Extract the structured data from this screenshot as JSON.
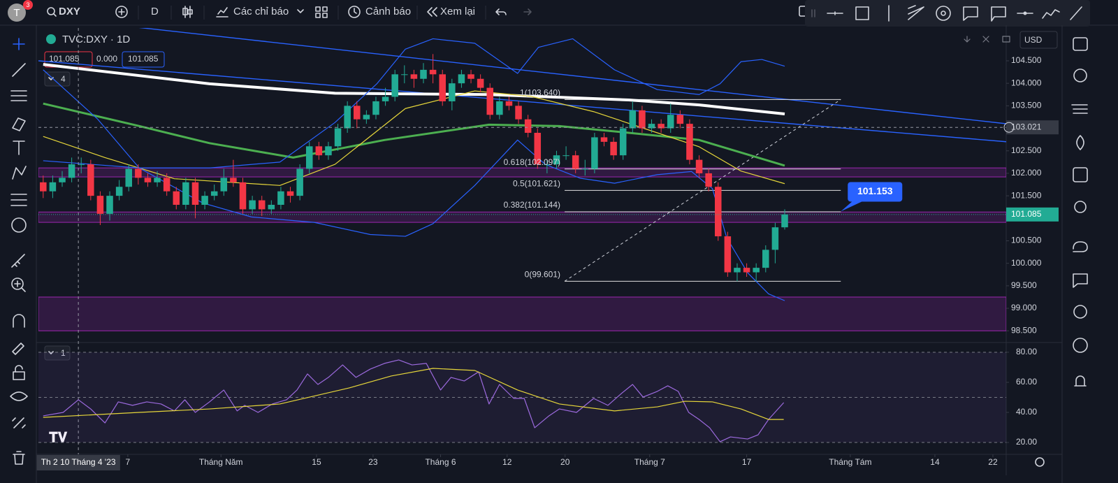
{
  "toolbar": {
    "avatar": "T",
    "badge": "3",
    "symbol": "DXY",
    "interval": "D",
    "indicators": "Các chỉ báo",
    "alert": "Cảnh báo",
    "replay": "Xem lại"
  },
  "legend": {
    "title": "TVC:DXY · 1D",
    "open": "101.085",
    "change": "0.000",
    "last": "101.085",
    "main_count": "4",
    "rsi_count": "1"
  },
  "currency": "USD",
  "chart_data": [
    {
      "type": "candlestick",
      "up_color": "#22ab94",
      "down_color": "#f23645",
      "open": [
        101.8,
        101.6,
        101.8,
        101.9,
        102.2,
        102.2,
        101.5,
        101.1,
        101.5,
        101.7,
        102.1,
        101.9,
        101.8,
        101.9,
        101.6,
        101.3,
        101.8,
        101.3,
        101.5,
        101.6,
        101.9,
        101.8,
        101.2,
        101.4,
        101.2,
        101.3,
        101.6,
        101.5,
        102.1,
        102.6,
        102.4,
        102.6,
        103.0,
        103.5,
        103.2,
        103.3,
        103.6,
        103.7,
        104.2,
        104.2,
        104.1,
        104.3,
        104.2,
        103.6,
        104.0,
        104.2,
        104.1,
        103.9,
        103.3,
        103.6,
        103.5,
        103.2,
        102.9,
        102.2,
        102.2,
        102.4,
        102.4,
        102.1,
        102.1,
        102.8,
        102.7,
        102.4,
        103.0,
        103.4,
        103.0,
        103.1,
        103.0,
        103.3,
        103.1,
        102.3,
        102.0,
        101.7,
        100.6,
        99.8,
        99.9,
        99.8,
        99.9,
        100.3,
        100.8
      ],
      "high": [
        101.95,
        101.95,
        102.05,
        102.35,
        102.35,
        102.3,
        101.6,
        101.6,
        101.85,
        102.2,
        102.2,
        102.0,
        102.05,
        102.0,
        101.7,
        101.9,
        101.9,
        101.6,
        101.75,
        102.1,
        102.3,
        101.9,
        101.5,
        101.5,
        101.4,
        101.7,
        101.7,
        102.2,
        102.7,
        102.7,
        102.7,
        103.1,
        103.6,
        103.6,
        103.4,
        103.7,
        103.9,
        104.3,
        104.4,
        104.3,
        104.45,
        104.65,
        104.3,
        104.1,
        104.3,
        104.3,
        104.2,
        104.0,
        103.7,
        103.7,
        103.6,
        103.3,
        103.0,
        102.3,
        102.5,
        102.6,
        102.5,
        102.3,
        102.9,
        102.9,
        102.8,
        103.1,
        103.6,
        103.5,
        103.2,
        103.2,
        103.55,
        103.4,
        103.2,
        102.4,
        102.1,
        101.8,
        100.7,
        100.0,
        100.0,
        100.0,
        100.4,
        100.9,
        101.2
      ],
      "low": [
        101.45,
        101.45,
        101.7,
        101.8,
        102.0,
        101.4,
        100.85,
        100.95,
        101.4,
        101.6,
        101.75,
        101.7,
        101.7,
        101.5,
        101.2,
        101.2,
        101.0,
        101.2,
        101.4,
        101.5,
        101.7,
        101.1,
        101.1,
        101.05,
        101.1,
        101.2,
        101.35,
        101.4,
        102.0,
        102.3,
        102.3,
        102.5,
        102.9,
        103.0,
        103.1,
        103.2,
        103.5,
        103.6,
        104.0,
        103.9,
        104.0,
        104.0,
        103.5,
        103.4,
        103.9,
        104.0,
        103.8,
        103.2,
        103.2,
        103.4,
        103.1,
        102.8,
        102.1,
        102.0,
        102.1,
        102.3,
        102.0,
        101.95,
        102.0,
        102.6,
        102.3,
        102.3,
        102.9,
        102.9,
        102.9,
        102.9,
        102.9,
        103.0,
        102.2,
        101.9,
        101.6,
        100.5,
        99.7,
        99.6,
        99.7,
        99.6,
        99.8,
        100.0,
        100.75
      ],
      "close": [
        101.6,
        101.8,
        101.9,
        102.2,
        102.2,
        101.5,
        101.1,
        101.5,
        101.7,
        102.1,
        101.9,
        101.8,
        101.9,
        101.6,
        101.3,
        101.8,
        101.3,
        101.5,
        101.6,
        101.9,
        101.8,
        101.2,
        101.4,
        101.2,
        101.3,
        101.6,
        101.5,
        102.1,
        102.6,
        102.4,
        102.6,
        103.0,
        103.5,
        103.2,
        103.3,
        103.6,
        103.7,
        104.2,
        104.2,
        104.1,
        104.3,
        104.2,
        103.6,
        104.0,
        104.2,
        104.1,
        103.9,
        103.3,
        103.6,
        103.5,
        103.2,
        102.9,
        102.2,
        102.2,
        102.4,
        102.4,
        102.1,
        102.1,
        102.8,
        102.7,
        102.4,
        103.0,
        103.4,
        103.0,
        103.1,
        103.0,
        103.3,
        103.1,
        102.3,
        102.0,
        101.7,
        100.6,
        99.8,
        99.9,
        99.8,
        99.9,
        100.3,
        100.8,
        101.085
      ],
      "xlim": [
        -0.5,
        101.3
      ],
      "ylim": [
        98.24,
        105.23
      ],
      "yticks": [
        {
          "value": 98.5,
          "label": "98.500"
        },
        {
          "value": 99,
          "label": "99.000"
        },
        {
          "value": 99.5,
          "label": "99.500"
        },
        {
          "value": 100,
          "label": "100.000"
        },
        {
          "value": 100.5,
          "label": "100.500"
        },
        {
          "value": 101,
          "label": "101.000"
        },
        {
          "value": 101.5,
          "label": "101.500"
        },
        {
          "value": 102,
          "label": "102.000"
        },
        {
          "value": 102.5,
          "label": "102.500"
        },
        {
          "value": 103,
          "label": "103.000"
        },
        {
          "value": 103.5,
          "label": "103.500"
        },
        {
          "value": 104,
          "label": "104.000"
        },
        {
          "value": 104.5,
          "label": "104.500"
        }
      ],
      "xticks": [
        {
          "value": 8.9,
          "label": "7"
        },
        {
          "value": 18.7,
          "label": "Tháng Năm"
        },
        {
          "value": 28.75,
          "label": "15"
        },
        {
          "value": 34.7,
          "label": "23"
        },
        {
          "value": 41.8,
          "label": "Tháng 6"
        },
        {
          "value": 48.8,
          "label": "12"
        },
        {
          "value": 54.9,
          "label": "20"
        },
        {
          "value": 63.8,
          "label": "Tháng 7"
        },
        {
          "value": 74,
          "label": "17"
        },
        {
          "value": 84.9,
          "label": "Tháng Tám"
        },
        {
          "value": 93.8,
          "label": "14"
        },
        {
          "value": 99.9,
          "label": "22"
        }
      ],
      "crosshair": {
        "x": {
          "value": 3.7,
          "label": "Th 2 10 Tháng 4 '23"
        },
        "y": 103.021
      },
      "last_price": 101.085,
      "callout": 101.153,
      "lines": [
        {
          "color": "#ffffff",
          "width": 4,
          "x": [
            0,
            17.5,
            30.7,
            46.9,
            61.6,
            69,
            78
          ],
          "values": [
            104.42,
            103.99,
            103.78,
            103.75,
            103.63,
            103.52,
            103.32
          ]
        },
        {
          "color": "#4caf50",
          "width": 3,
          "x": [
            0,
            10.1,
            17.5,
            26.3,
            35.9,
            46.9,
            54.3,
            61.6,
            69,
            78
          ],
          "values": [
            103.55,
            103.05,
            102.67,
            102.35,
            102.74,
            103.08,
            103.05,
            102.9,
            102.74,
            102.17
          ]
        },
        {
          "color": "#e6d63a",
          "width": 1.2,
          "x": [
            0,
            6.5,
            13.8,
            24.9,
            30.7,
            38.1,
            45.4,
            51.3,
            57.9,
            64.6,
            69,
            73.4,
            78
          ],
          "values": [
            102.82,
            102.35,
            101.88,
            101.73,
            102.2,
            103.44,
            103.83,
            103.71,
            103.37,
            102.9,
            102.59,
            102.05,
            101.77
          ]
        },
        {
          "color": "#2962ff",
          "width": 1.2,
          "x": [
            0,
            10.1,
            17.5,
            24.9,
            30.7,
            35.1,
            38.1,
            41,
            45.4,
            49.9,
            52.1,
            55.7,
            60.1,
            64.6,
            69,
            71.2,
            73.4,
            75.6,
            78
          ],
          "values": [
            102.28,
            102.12,
            102.12,
            102.25,
            103.13,
            103.99,
            104.76,
            104.99,
            104.89,
            104.22,
            104.8,
            104.99,
            104.3,
            103.86,
            103.75,
            103.99,
            104.48,
            104.53,
            104.38
          ]
        },
        {
          "color": "#2962ff",
          "width": 1.2,
          "x": [
            0,
            5.7,
            10.1,
            16.8,
            21.9,
            28.5,
            34.4,
            38.1,
            41,
            45.4,
            49.9,
            52.8,
            56.5,
            60.1,
            64.6,
            68.2,
            70.4,
            71.9,
            74.1,
            76.3,
            78
          ],
          "values": [
            104.3,
            103.21,
            102.12,
            101.34,
            101.03,
            100.91,
            100.64,
            100.6,
            100.88,
            101.73,
            102.74,
            102.2,
            101.89,
            101.78,
            101.97,
            102.04,
            101.66,
            100.57,
            99.79,
            99.32,
            99.17
          ]
        }
      ],
      "zones": [
        [
          101.92,
          102.12
        ],
        [
          100.91,
          101.14
        ],
        [
          98.5,
          99.25
        ]
      ],
      "fib": {
        "x": [
          54.85,
          83.9
        ],
        "levels": [
          {
            "value": 103.64,
            "label": "1(103.640)"
          },
          {
            "value": 102.097,
            "label": "0.618(102.097)"
          },
          {
            "value": 101.621,
            "label": "0.5(101.621)"
          },
          {
            "value": 101.144,
            "label": "0.382(101.144)"
          },
          {
            "value": 99.601,
            "label": "0(99.601)"
          }
        ]
      }
    },
    {
      "type": "line",
      "xlim": [
        -0.5,
        101.3
      ],
      "ylim": [
        12.1,
        86.5
      ],
      "yticks": [
        {
          "value": 20,
          "label": "20.00"
        },
        {
          "value": 40,
          "label": "40.00"
        },
        {
          "value": 60,
          "label": "60.00"
        },
        {
          "value": 80,
          "label": "80.00"
        }
      ],
      "levels": [
        80,
        50,
        20
      ],
      "series": [
        {
          "color": "#9c6ade",
          "x": [
            0,
            2.1,
            3.7,
            5,
            6.5,
            7.9,
            9.4,
            10.9,
            12.4,
            13.8,
            14.9,
            16,
            17.5,
            19,
            20.4,
            21.2,
            22.6,
            24.1,
            25.6,
            26.7,
            27.8,
            28.9,
            30,
            31.5,
            32.9,
            34.4,
            35.9,
            37.4,
            38.8,
            40.3,
            41.8,
            42.9,
            44.3,
            45.8,
            46.9,
            48,
            49.5,
            50.6,
            51.7,
            53.2,
            54.3,
            56.1,
            57.9,
            59.4,
            60.9,
            62,
            63.1,
            64.6,
            65.7,
            66.8,
            67.9,
            69,
            70.1,
            71.2,
            72.3,
            74.1,
            75.2,
            76.3,
            77.9
          ],
          "values": [
            37.7,
            40,
            48.4,
            42.3,
            33,
            47,
            44.7,
            47,
            45.6,
            41,
            48.4,
            40,
            47,
            54.9,
            41,
            44.7,
            40,
            45.6,
            48.4,
            54.9,
            65.6,
            58.6,
            63.3,
            71.6,
            63.3,
            68.8,
            72.6,
            74.9,
            71.6,
            72.6,
            54.9,
            63.3,
            60.9,
            67,
            45.6,
            58.6,
            49.3,
            49.3,
            29.8,
            37.7,
            42.3,
            40,
            49.3,
            44.7,
            53,
            58.6,
            50.2,
            54,
            57.7,
            54,
            40,
            35.3,
            29.8,
            20.5,
            23.7,
            22.3,
            25.1,
            35.3,
            46.5
          ]
        },
        {
          "color": "#e6d63a",
          "x": [
            0,
            10.1,
            17.5,
            24.9,
            32.2,
            36.6,
            41,
            45.4,
            49.9,
            54.3,
            60.1,
            64.6,
            67.5,
            70.4,
            73.4,
            76.3,
            77.9
          ],
          "values": [
            36.7,
            40,
            42.3,
            45.6,
            56.3,
            64.2,
            69.3,
            67.9,
            54.9,
            45.6,
            41,
            43.7,
            47.4,
            47,
            42.3,
            35.3,
            35.3
          ]
        }
      ]
    }
  ]
}
